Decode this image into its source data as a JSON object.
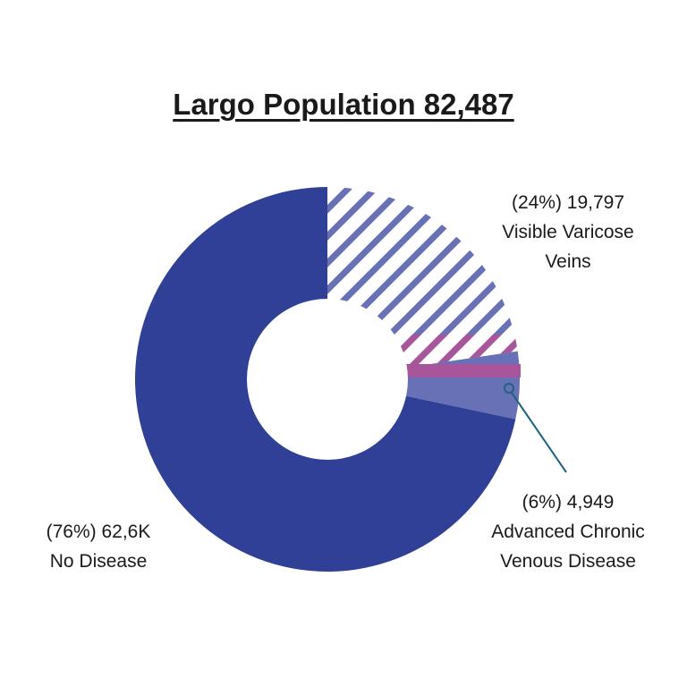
{
  "chart_data": {
    "type": "pie",
    "title": "Largo Population 82,487",
    "slices": [
      {
        "name": "Visible Varicose Veins",
        "value": 19797,
        "percent": 24,
        "label_line1": "(24%) 19,797",
        "label_line2": "Visible Varicose",
        "label_line3": "Veins",
        "fill": "hatched",
        "color": "#6870b6"
      },
      {
        "name": "Advanced Chronic Venous Disease",
        "value": 4949,
        "percent": 6,
        "label_line1": "(6%) 4,949",
        "label_line2": "Advanced Chronic",
        "label_line3": "Venous Disease",
        "fill": "solid",
        "color": "#6870b6"
      },
      {
        "name": "No Disease",
        "value": 62600,
        "percent": 76,
        "label_line1": "(76%) 62,6K",
        "label_line2": "No Disease",
        "fill": "solid",
        "color": "#2f4096"
      }
    ],
    "highlight_band": {
      "color": "#a8559c"
    },
    "leader_line_color": "#1f6280"
  }
}
